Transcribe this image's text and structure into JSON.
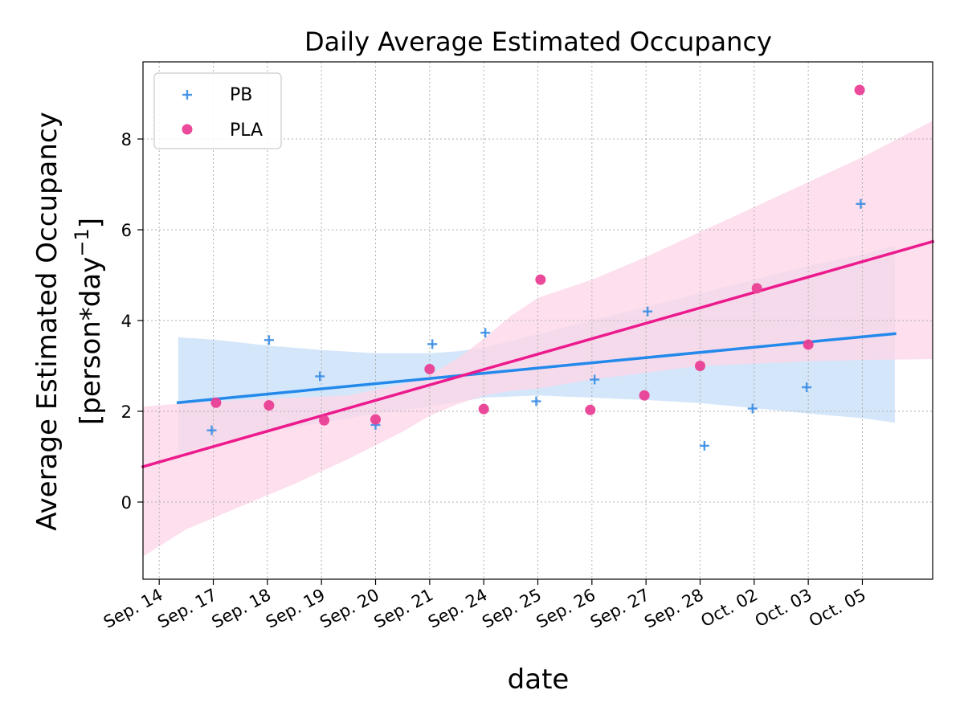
{
  "chart_data": {
    "type": "scatter",
    "title": "Daily Average Estimated Occupancy",
    "xlabel": "date",
    "ylabel_line1": "Average Estimated Occupancy",
    "ylabel_line2_prefix": "[person*day",
    "ylabel_line2_exponent": "−1",
    "ylabel_line2_suffix": "]",
    "ylim": [
      -1.7,
      9.7
    ],
    "yticks": [
      0,
      2,
      4,
      6,
      8
    ],
    "ytick_labels": [
      "0",
      "2",
      "4",
      "6",
      "8"
    ],
    "xlim": [
      -0.3,
      14.3
    ],
    "categories": [
      "Sep. 14",
      "Sep. 17",
      "Sep. 18",
      "Sep. 19",
      "Sep. 20",
      "Sep. 21",
      "Sep. 24",
      "Sep. 25",
      "Sep. 26",
      "Sep. 27",
      "Sep. 28",
      "Oct. 02",
      "Oct. 03",
      "Oct. 05"
    ],
    "grid": true,
    "legend_position": "top-left",
    "series": [
      {
        "name": "PB",
        "marker": "plus",
        "color": "#3a8ee6",
        "points": [
          {
            "x": 0.97,
            "y": 1.58
          },
          {
            "x": 2.03,
            "y": 3.57
          },
          {
            "x": 2.97,
            "y": 2.77
          },
          {
            "x": 4.0,
            "y": 1.7
          },
          {
            "x": 5.05,
            "y": 3.48
          },
          {
            "x": 6.03,
            "y": 3.73
          },
          {
            "x": 6.97,
            "y": 2.22
          },
          {
            "x": 8.05,
            "y": 2.7
          },
          {
            "x": 9.03,
            "y": 4.2
          },
          {
            "x": 10.08,
            "y": 1.24
          },
          {
            "x": 10.97,
            "y": 2.06
          },
          {
            "x": 11.97,
            "y": 2.53
          },
          {
            "x": 12.97,
            "y": 6.57
          }
        ],
        "fit_line": {
          "x_start": 0.35,
          "y_start": 2.19,
          "x_end": 13.6,
          "y_end": 3.71,
          "color": "#2389eb"
        },
        "confidence_band": {
          "color": "#c5def8",
          "x": [
            0.35,
            1.0,
            2.0,
            3.0,
            4.0,
            5.0,
            5.5,
            6.0,
            7.0,
            8.0,
            9.0,
            10.0,
            11.0,
            12.0,
            13.0,
            13.6
          ],
          "upper": [
            3.63,
            3.58,
            3.45,
            3.35,
            3.28,
            3.28,
            3.32,
            3.4,
            3.7,
            4.0,
            4.3,
            4.6,
            4.9,
            5.2,
            5.45,
            5.65
          ],
          "lower": [
            1.05,
            1.3,
            1.55,
            1.75,
            1.95,
            2.1,
            2.2,
            2.3,
            2.35,
            2.3,
            2.25,
            2.18,
            2.07,
            1.95,
            1.85,
            1.75
          ]
        }
      },
      {
        "name": "PLA",
        "marker": "circle",
        "color": "#ea3f95",
        "points": [
          {
            "x": 1.05,
            "y": 2.19
          },
          {
            "x": 2.03,
            "y": 2.13
          },
          {
            "x": 3.05,
            "y": 1.8
          },
          {
            "x": 4.0,
            "y": 1.82
          },
          {
            "x": 5.0,
            "y": 2.93
          },
          {
            "x": 6.0,
            "y": 2.05
          },
          {
            "x": 7.05,
            "y": 4.9
          },
          {
            "x": 7.97,
            "y": 2.03
          },
          {
            "x": 8.97,
            "y": 2.35
          },
          {
            "x": 10.0,
            "y": 3.0
          },
          {
            "x": 11.05,
            "y": 4.71
          },
          {
            "x": 12.0,
            "y": 3.47
          },
          {
            "x": 12.95,
            "y": 9.08
          }
        ],
        "fit_line": {
          "x_start": -0.3,
          "y_start": 0.78,
          "x_end": 14.3,
          "y_end": 5.74,
          "color": "#ec1a8d"
        },
        "confidence_band": {
          "color": "#fdd7e9",
          "x": [
            -0.3,
            0.5,
            1.5,
            2.5,
            3.5,
            4.5,
            5.0,
            5.5,
            6.0,
            6.5,
            7.0,
            8.0,
            9.0,
            10.0,
            11.0,
            12.0,
            13.0,
            14.3
          ],
          "upper": [
            2.1,
            2.18,
            2.25,
            2.3,
            2.35,
            2.6,
            2.8,
            3.15,
            3.6,
            4.1,
            4.5,
            4.9,
            5.4,
            5.95,
            6.5,
            7.05,
            7.6,
            8.4
          ],
          "lower": [
            -1.2,
            -0.6,
            -0.1,
            0.4,
            0.95,
            1.55,
            1.9,
            2.15,
            2.35,
            2.45,
            2.5,
            2.7,
            2.85,
            3.0,
            3.05,
            3.1,
            3.13,
            3.15
          ]
        }
      }
    ]
  }
}
